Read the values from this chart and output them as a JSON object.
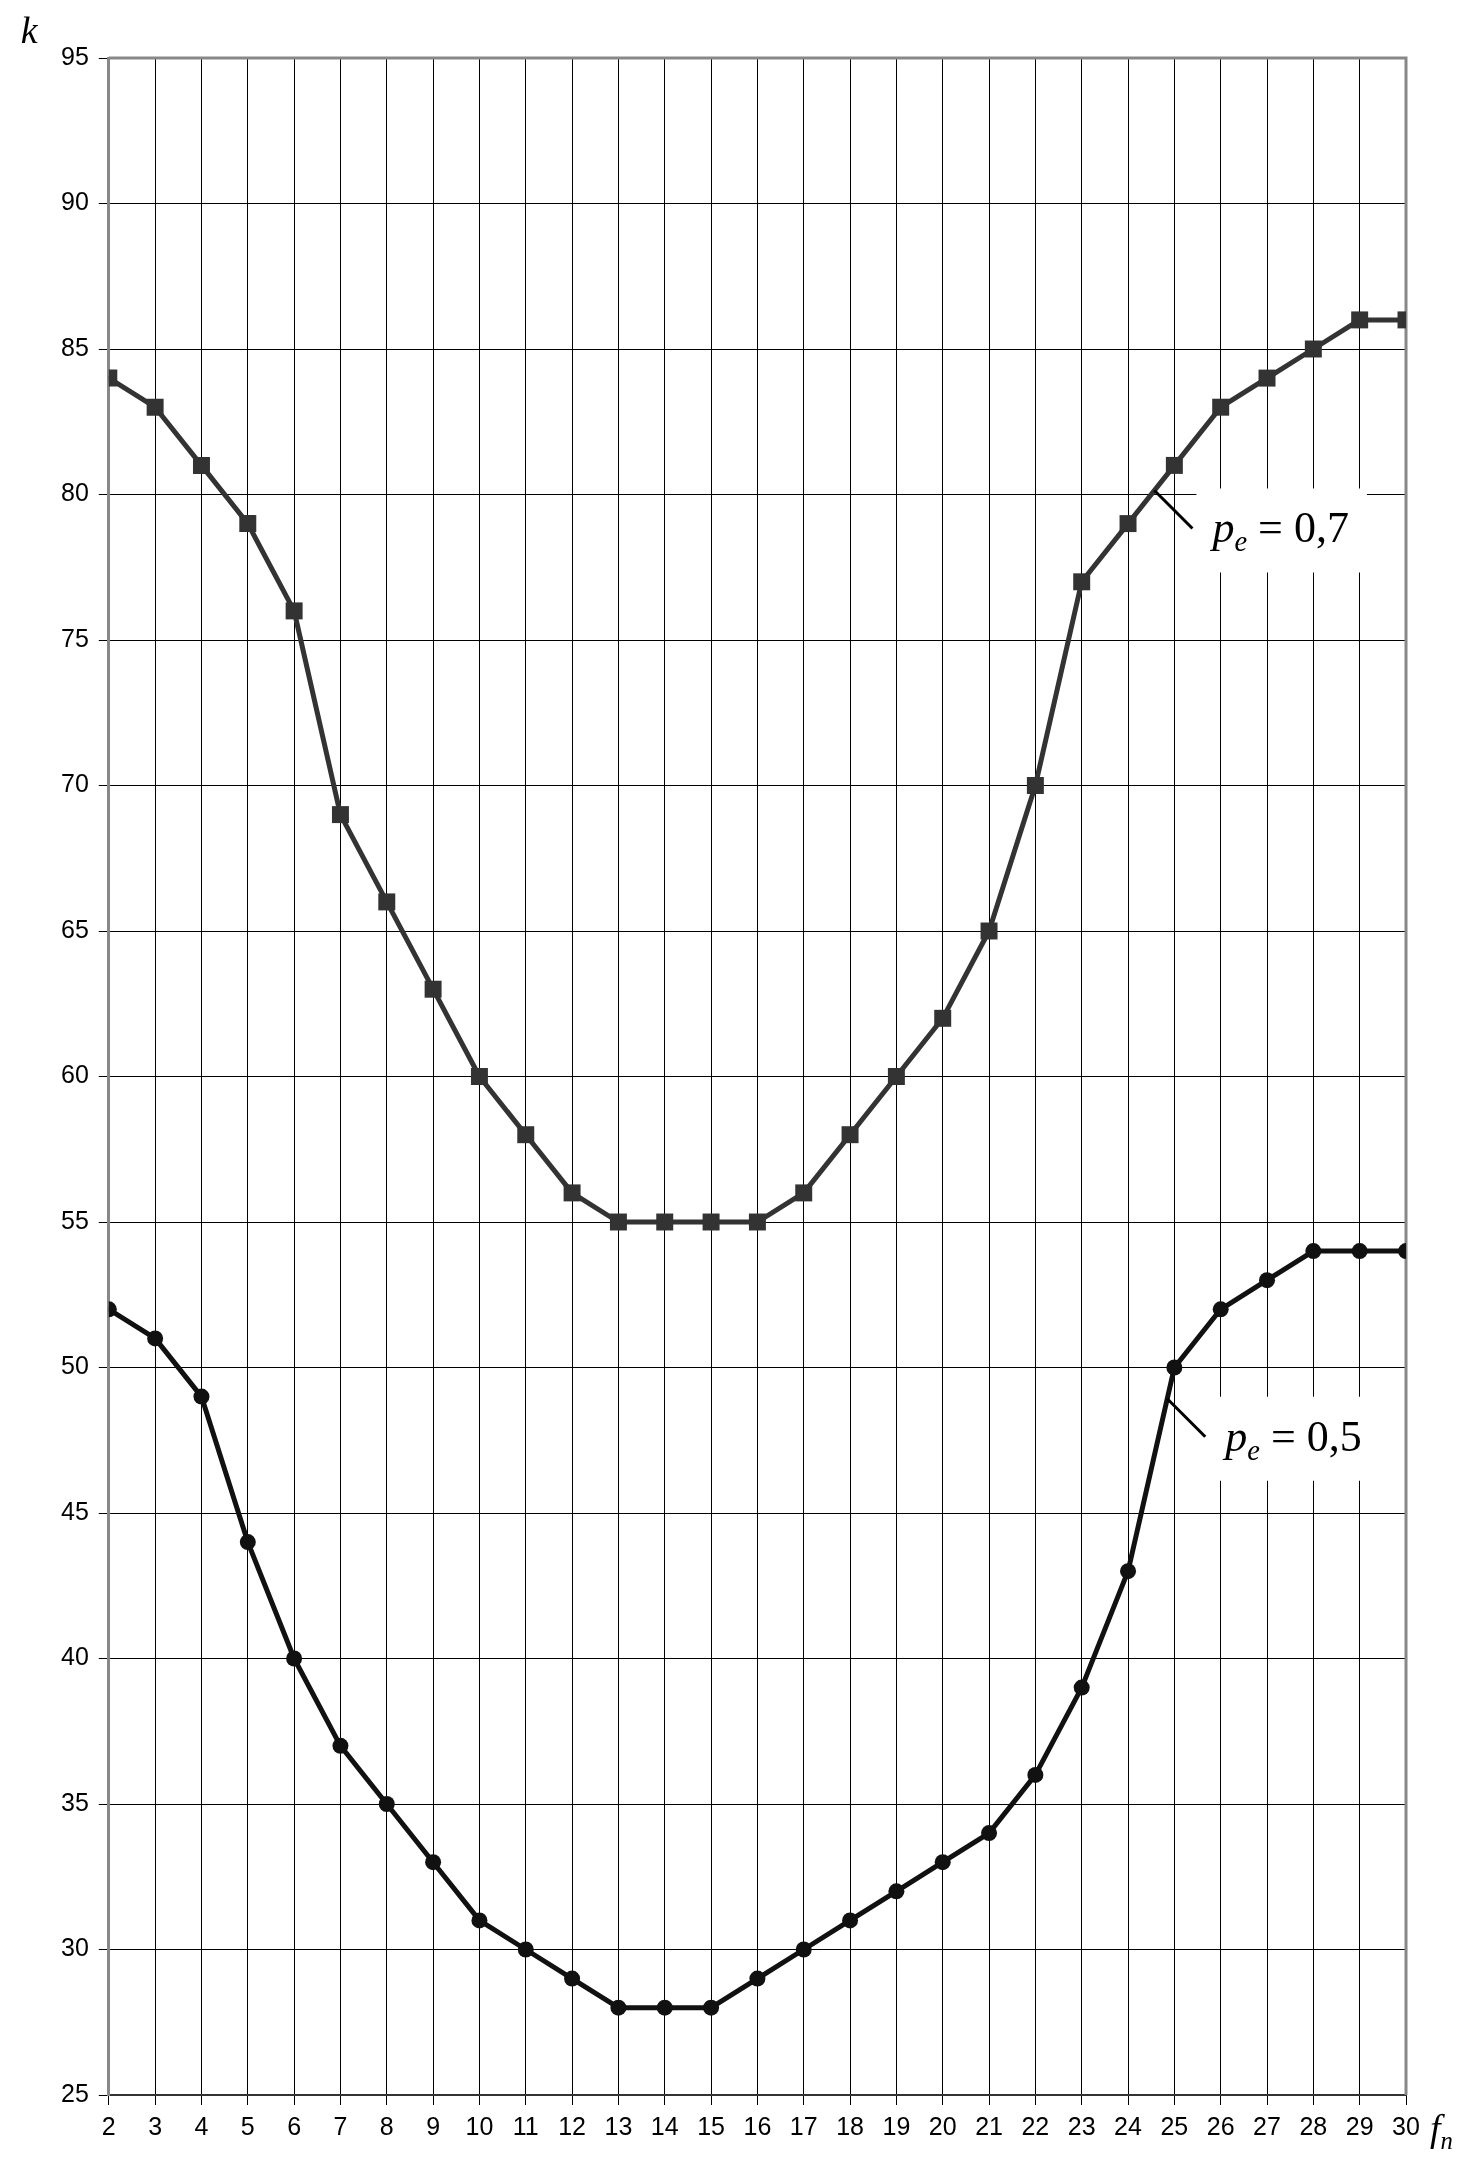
{
  "chart_data": {
    "type": "line",
    "xlabel": "f$_{n}$",
    "ylabel": "k",
    "x": [
      2,
      3,
      4,
      5,
      6,
      7,
      8,
      9,
      10,
      11,
      12,
      13,
      14,
      15,
      16,
      17,
      18,
      19,
      20,
      21,
      22,
      23,
      24,
      25,
      26,
      27,
      28,
      29,
      30
    ],
    "xlim": [
      2,
      30
    ],
    "xticks": [
      2,
      3,
      4,
      5,
      6,
      7,
      8,
      9,
      10,
      11,
      12,
      13,
      14,
      15,
      16,
      17,
      18,
      19,
      20,
      21,
      22,
      23,
      24,
      25,
      26,
      27,
      28,
      29,
      30
    ],
    "ylim": [
      25,
      95
    ],
    "yticks": [
      25,
      30,
      35,
      40,
      45,
      50,
      55,
      60,
      65,
      70,
      75,
      80,
      85,
      90,
      95
    ],
    "grid": true,
    "legend": false,
    "series": [
      {
        "name": "p$_{e}$ = 0,7",
        "color": "#333333",
        "marker": "square",
        "values": [
          84,
          83,
          81,
          79,
          76,
          69,
          66,
          63,
          60,
          58,
          56,
          55,
          55,
          55,
          55,
          56,
          58,
          60,
          62,
          65,
          70,
          77,
          79,
          81,
          83,
          84,
          85,
          86,
          86
        ]
      },
      {
        "name": "p$_{e}$ = 0,5",
        "color": "#111111",
        "marker": "circle",
        "values": [
          52,
          51,
          49,
          44,
          40,
          37,
          35,
          33,
          31,
          30,
          29,
          28,
          28,
          28,
          29,
          30,
          31,
          32,
          33,
          34,
          36,
          39,
          43,
          50,
          52,
          53,
          54,
          54,
          54
        ]
      }
    ]
  }
}
